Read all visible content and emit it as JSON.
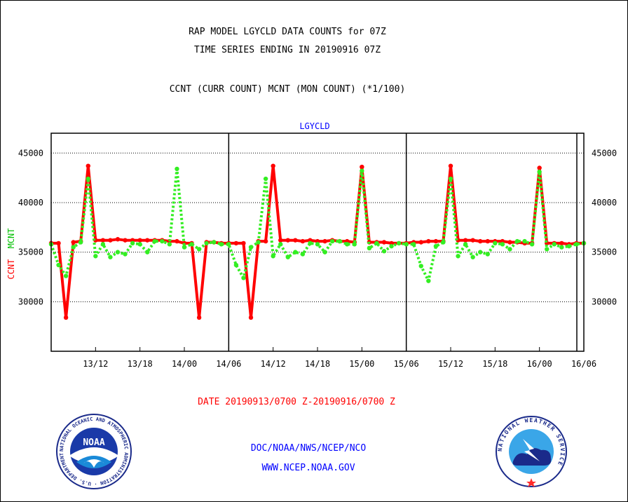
{
  "header": {
    "title1": "RAP MODEL LGYCLD DATA COUNTS for 07Z",
    "title2": "TIME SERIES ENDING IN 20190916 07Z",
    "subtitle": "CCNT (CURR COUNT) MCNT (MON COUNT) (*1/100)"
  },
  "footer": {
    "date_range": "DATE 20190913/0700 Z-20190916/0700 Z",
    "doc": "DOC/NOAA/NWS/NCEP/NCO",
    "web": "WWW.NCEP.NOAA.GOV"
  },
  "logos": {
    "noaa_label": "NOAA",
    "noaa_ring_text": "NATIONAL OCEANIC AND ATMOSPHERIC ADMINISTRATION · U.S. DEPARTMENT OF COMMERCE",
    "nws_ring_text": "NATIONAL WEATHER SERVICE"
  },
  "colors": {
    "ccnt": "#ff0000",
    "mcnt": "#33ee22",
    "panel_title": "#0000ff",
    "grid": "#000000"
  },
  "chart_data": {
    "type": "line",
    "panel_title": "LGYCLD",
    "ylabel_parts": [
      "CCNT",
      "MCNT"
    ],
    "ylim": [
      25000,
      47000
    ],
    "yticks": [
      30000,
      35000,
      40000,
      45000
    ],
    "ytick_labels": [
      "30000",
      "35000",
      "40000",
      "45000"
    ],
    "x_unit": "hours since 2019-09-13 07Z",
    "xlim": [
      0,
      72
    ],
    "xticks": [
      {
        "x": 6,
        "label": "13/12"
      },
      {
        "x": 12,
        "label": "13/18"
      },
      {
        "x": 18,
        "label": "14/00"
      },
      {
        "x": 24,
        "label": "14/06"
      },
      {
        "x": 30,
        "label": "14/12"
      },
      {
        "x": 36,
        "label": "14/18"
      },
      {
        "x": 42,
        "label": "15/00"
      },
      {
        "x": 48,
        "label": "15/06"
      },
      {
        "x": 54,
        "label": "15/12"
      },
      {
        "x": 60,
        "label": "15/18"
      },
      {
        "x": 66,
        "label": "16/00"
      },
      {
        "x": 72,
        "label": "16/06"
      }
    ],
    "day_separators": [
      24,
      48,
      72
    ],
    "grid": "horizontal",
    "series": [
      {
        "name": "CCNT",
        "style": "solid",
        "values": [
          35900,
          35900,
          28400,
          36000,
          36100,
          43700,
          36200,
          36200,
          36200,
          36300,
          36200,
          36200,
          36200,
          36200,
          36200,
          36200,
          36100,
          36100,
          35900,
          35900,
          28400,
          36000,
          36000,
          35900,
          35900,
          35900,
          35900,
          28400,
          36100,
          36100,
          43700,
          36200,
          36200,
          36200,
          36100,
          36200,
          36100,
          36100,
          36200,
          36100,
          36100,
          36000,
          43600,
          36000,
          36000,
          36000,
          35900,
          35900,
          35900,
          36000,
          36000,
          36100,
          36100,
          36100,
          43700,
          36200,
          36200,
          36200,
          36100,
          36100,
          36100,
          36100,
          36000,
          36000,
          35900,
          35900,
          43500,
          35900,
          35900,
          35900,
          35800,
          35900,
          35900
        ]
      },
      {
        "name": "MCNT",
        "style": "dotted",
        "values": [
          35800,
          33700,
          32600,
          35500,
          36000,
          42400,
          34600,
          35800,
          34500,
          35000,
          34800,
          35900,
          35800,
          35000,
          36100,
          36100,
          35800,
          43400,
          35500,
          35800,
          35300,
          35900,
          36000,
          35800,
          35800,
          33700,
          32400,
          35500,
          36000,
          42400,
          34600,
          35800,
          34500,
          35000,
          34800,
          35900,
          35800,
          35000,
          36100,
          36100,
          35800,
          35800,
          43200,
          35400,
          35900,
          35100,
          35600,
          35900,
          35800,
          35800,
          33600,
          32100,
          35600,
          36000,
          42400,
          34600,
          35800,
          34500,
          35000,
          34800,
          35900,
          35800,
          35300,
          36100,
          36100,
          35800,
          43100,
          35300,
          35800,
          35500,
          35600,
          35800,
          35900
        ]
      }
    ]
  }
}
